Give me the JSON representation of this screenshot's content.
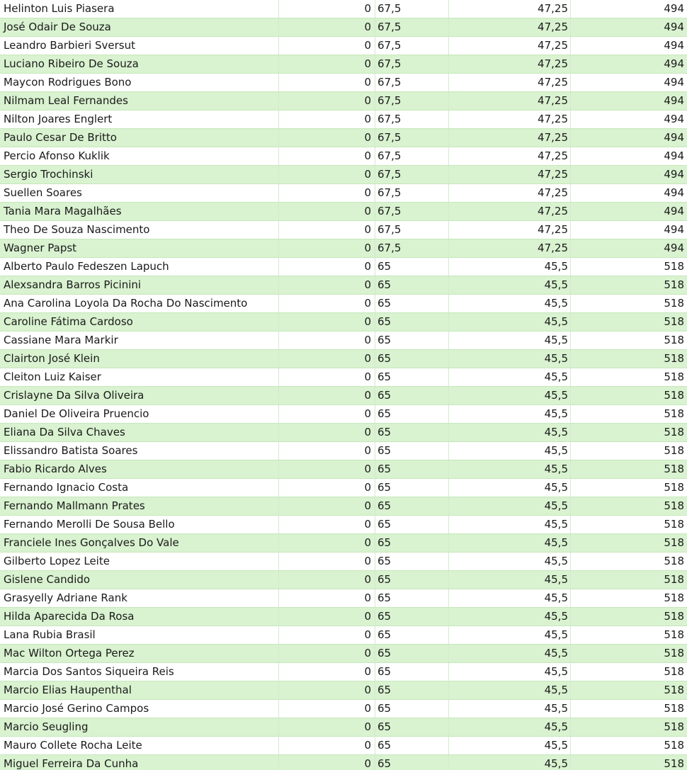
{
  "table": {
    "rows": [
      {
        "name": "Helinton Luis Piasera",
        "col_b": "0",
        "col_c": "67,5",
        "col_d": "47,25",
        "col_e": "494"
      },
      {
        "name": "José Odair De Souza",
        "col_b": "0",
        "col_c": "67,5",
        "col_d": "47,25",
        "col_e": "494"
      },
      {
        "name": "Leandro Barbieri Sversut",
        "col_b": "0",
        "col_c": "67,5",
        "col_d": "47,25",
        "col_e": "494"
      },
      {
        "name": "Luciano Ribeiro De Souza",
        "col_b": "0",
        "col_c": "67,5",
        "col_d": "47,25",
        "col_e": "494"
      },
      {
        "name": "Maycon Rodrigues Bono",
        "col_b": "0",
        "col_c": "67,5",
        "col_d": "47,25",
        "col_e": "494"
      },
      {
        "name": "Nilmam Leal Fernandes",
        "col_b": "0",
        "col_c": "67,5",
        "col_d": "47,25",
        "col_e": "494"
      },
      {
        "name": "Nilton Joares Englert",
        "col_b": "0",
        "col_c": "67,5",
        "col_d": "47,25",
        "col_e": "494"
      },
      {
        "name": "Paulo Cesar De Britto",
        "col_b": "0",
        "col_c": "67,5",
        "col_d": "47,25",
        "col_e": "494"
      },
      {
        "name": "Percio Afonso Kuklik",
        "col_b": "0",
        "col_c": "67,5",
        "col_d": "47,25",
        "col_e": "494"
      },
      {
        "name": "Sergio Trochinski",
        "col_b": "0",
        "col_c": "67,5",
        "col_d": "47,25",
        "col_e": "494"
      },
      {
        "name": "Suellen Soares",
        "col_b": "0",
        "col_c": "67,5",
        "col_d": "47,25",
        "col_e": "494"
      },
      {
        "name": "Tania Mara Magalhães",
        "col_b": "0",
        "col_c": "67,5",
        "col_d": "47,25",
        "col_e": "494"
      },
      {
        "name": "Theo De Souza Nascimento",
        "col_b": "0",
        "col_c": "67,5",
        "col_d": "47,25",
        "col_e": "494"
      },
      {
        "name": "Wagner Papst",
        "col_b": "0",
        "col_c": "67,5",
        "col_d": "47,25",
        "col_e": "494"
      },
      {
        "name": "Alberto Paulo Fedeszen Lapuch",
        "col_b": "0",
        "col_c": "65",
        "col_d": "45,5",
        "col_e": "518"
      },
      {
        "name": "Alexsandra Barros Picinini",
        "col_b": "0",
        "col_c": "65",
        "col_d": "45,5",
        "col_e": "518"
      },
      {
        "name": "Ana Carolina Loyola Da Rocha Do Nascimento",
        "col_b": "0",
        "col_c": "65",
        "col_d": "45,5",
        "col_e": "518"
      },
      {
        "name": "Caroline Fátima Cardoso",
        "col_b": "0",
        "col_c": "65",
        "col_d": "45,5",
        "col_e": "518"
      },
      {
        "name": "Cassiane Mara Markir",
        "col_b": "0",
        "col_c": "65",
        "col_d": "45,5",
        "col_e": "518"
      },
      {
        "name": "Clairton José Klein",
        "col_b": "0",
        "col_c": "65",
        "col_d": "45,5",
        "col_e": "518"
      },
      {
        "name": "Cleiton Luiz Kaiser",
        "col_b": "0",
        "col_c": "65",
        "col_d": "45,5",
        "col_e": "518"
      },
      {
        "name": "Crislayne Da Silva Oliveira",
        "col_b": "0",
        "col_c": "65",
        "col_d": "45,5",
        "col_e": "518"
      },
      {
        "name": "Daniel De Oliveira Pruencio",
        "col_b": "0",
        "col_c": "65",
        "col_d": "45,5",
        "col_e": "518"
      },
      {
        "name": "Eliana Da Silva Chaves",
        "col_b": "0",
        "col_c": "65",
        "col_d": "45,5",
        "col_e": "518"
      },
      {
        "name": "Elissandro Batista Soares",
        "col_b": "0",
        "col_c": "65",
        "col_d": "45,5",
        "col_e": "518"
      },
      {
        "name": "Fabio Ricardo Alves",
        "col_b": "0",
        "col_c": "65",
        "col_d": "45,5",
        "col_e": "518"
      },
      {
        "name": "Fernando Ignacio Costa",
        "col_b": "0",
        "col_c": "65",
        "col_d": "45,5",
        "col_e": "518"
      },
      {
        "name": "Fernando Mallmann Prates",
        "col_b": "0",
        "col_c": "65",
        "col_d": "45,5",
        "col_e": "518"
      },
      {
        "name": "Fernando Merolli De Sousa Bello",
        "col_b": "0",
        "col_c": "65",
        "col_d": "45,5",
        "col_e": "518"
      },
      {
        "name": "Franciele Ines Gonçalves Do Vale",
        "col_b": "0",
        "col_c": "65",
        "col_d": "45,5",
        "col_e": "518"
      },
      {
        "name": "Gilberto Lopez Leite",
        "col_b": "0",
        "col_c": "65",
        "col_d": "45,5",
        "col_e": "518"
      },
      {
        "name": "Gislene Candido",
        "col_b": "0",
        "col_c": "65",
        "col_d": "45,5",
        "col_e": "518"
      },
      {
        "name": "Grasyelly Adriane Rank",
        "col_b": "0",
        "col_c": "65",
        "col_d": "45,5",
        "col_e": "518"
      },
      {
        "name": "Hilda Aparecida Da Rosa",
        "col_b": "0",
        "col_c": "65",
        "col_d": "45,5",
        "col_e": "518"
      },
      {
        "name": "Lana Rubia Brasil",
        "col_b": "0",
        "col_c": "65",
        "col_d": "45,5",
        "col_e": "518"
      },
      {
        "name": "Mac Wilton Ortega Perez",
        "col_b": "0",
        "col_c": "65",
        "col_d": "45,5",
        "col_e": "518"
      },
      {
        "name": "Marcia Dos Santos Siqueira Reis",
        "col_b": "0",
        "col_c": "65",
        "col_d": "45,5",
        "col_e": "518"
      },
      {
        "name": "Marcio Elias Haupenthal",
        "col_b": "0",
        "col_c": "65",
        "col_d": "45,5",
        "col_e": "518"
      },
      {
        "name": "Marcio José Gerino Campos",
        "col_b": "0",
        "col_c": "65",
        "col_d": "45,5",
        "col_e": "518"
      },
      {
        "name": "Marcio Seugling",
        "col_b": "0",
        "col_c": "65",
        "col_d": "45,5",
        "col_e": "518"
      },
      {
        "name": "Mauro Collete Rocha Leite",
        "col_b": "0",
        "col_c": "65",
        "col_d": "45,5",
        "col_e": "518"
      },
      {
        "name": "Miguel Ferreira Da Cunha",
        "col_b": "0",
        "col_c": "65",
        "col_d": "45,5",
        "col_e": "518"
      }
    ]
  },
  "colors": {
    "band_green": "#d9f2d0",
    "band_white": "#ffffff",
    "gridline": "#c6e8bb"
  }
}
